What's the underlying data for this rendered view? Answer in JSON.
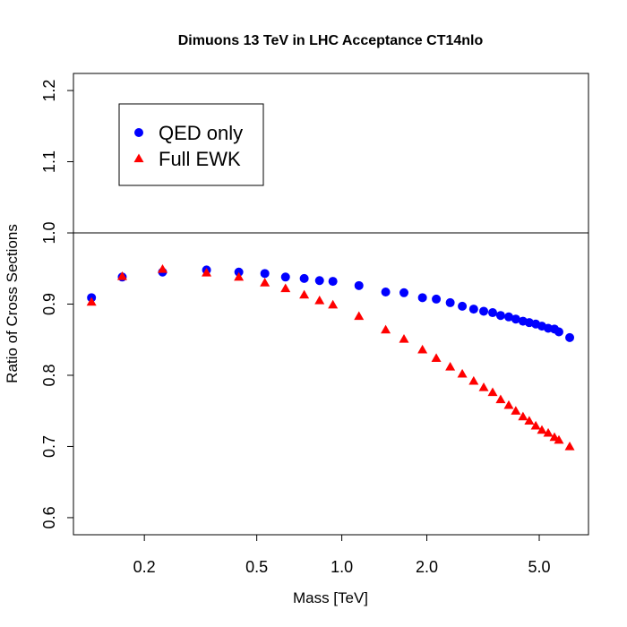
{
  "chart_data": {
    "type": "scatter",
    "title": "Dimuons 13 TeV in LHC Acceptance CT14nlo",
    "x_label": "Mass [TeV]",
    "y_label": "Ratio of Cross Sections",
    "x_scale": "log",
    "x": [
      0.13,
      0.167,
      0.232,
      0.332,
      0.432,
      0.534,
      0.632,
      0.736,
      0.834,
      0.93,
      1.15,
      1.43,
      1.66,
      1.93,
      2.16,
      2.42,
      2.67,
      2.93,
      3.18,
      3.42,
      3.65,
      3.9,
      4.13,
      4.38,
      4.61,
      4.86,
      5.11,
      5.38,
      5.66,
      5.87,
      6.41
    ],
    "series": [
      {
        "name": "QED only",
        "color": "#0000ff",
        "marker": "circle",
        "values": [
          0.909,
          0.938,
          0.945,
          0.948,
          0.945,
          0.943,
          0.938,
          0.936,
          0.933,
          0.932,
          0.926,
          0.917,
          0.916,
          0.909,
          0.907,
          0.902,
          0.897,
          0.893,
          0.89,
          0.888,
          0.884,
          0.882,
          0.879,
          0.876,
          0.874,
          0.872,
          0.869,
          0.866,
          0.865,
          0.861,
          0.853
        ]
      },
      {
        "name": "Full EWK",
        "color": "#ff0000",
        "marker": "triangle",
        "values": [
          0.903,
          0.939,
          0.949,
          0.944,
          0.938,
          0.93,
          0.922,
          0.913,
          0.905,
          0.899,
          0.883,
          0.864,
          0.851,
          0.836,
          0.824,
          0.812,
          0.802,
          0.792,
          0.783,
          0.776,
          0.766,
          0.758,
          0.75,
          0.742,
          0.736,
          0.729,
          0.723,
          0.719,
          0.713,
          0.709,
          0.7
        ]
      }
    ],
    "xlim": [
      0.1122,
      7.47
    ],
    "ylim": [
      0.576,
      1.224
    ],
    "xticks": [
      0.2,
      0.5,
      {
        "value": 1,
        "label": "1.0"
      },
      {
        "value": 2,
        "label": "2.0"
      },
      {
        "value": 5,
        "label": "5.0"
      }
    ],
    "yticks": [
      0.6,
      0.7,
      0.8,
      0.9,
      {
        "value": 1,
        "label": "1.0"
      },
      1.1,
      1.2
    ],
    "reference_line": 1,
    "grid": false,
    "legend_position": "top-left"
  }
}
